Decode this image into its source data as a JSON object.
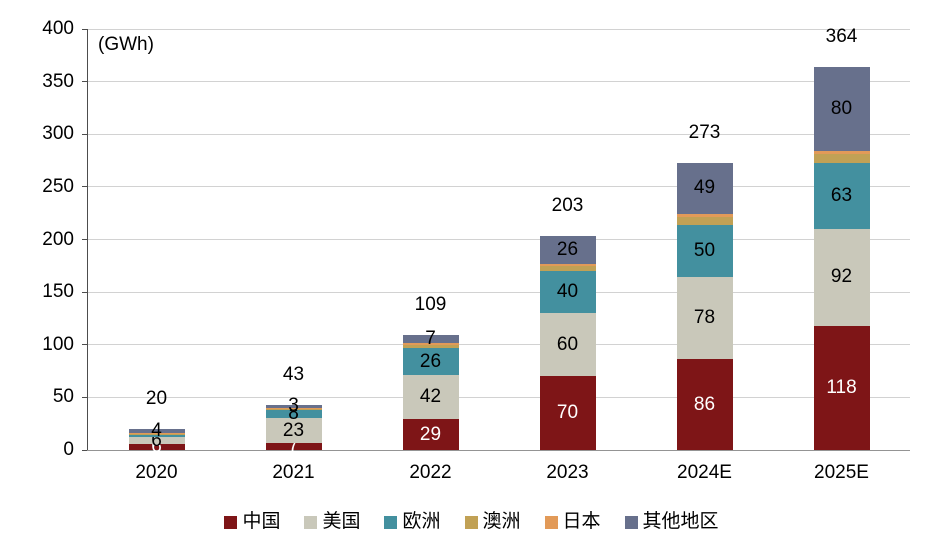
{
  "chart_data": {
    "type": "bar",
    "subtype": "stacked",
    "title": "",
    "unit_label": "(GWh)",
    "xlabel": "",
    "ylabel": "GWh",
    "grid": true,
    "legend_position": "bottom",
    "categories": [
      "2020",
      "2021",
      "2022",
      "2023",
      "2024E",
      "2025E"
    ],
    "totals": [
      20,
      43,
      109,
      203,
      273,
      364
    ],
    "series": [
      {
        "key": "china",
        "name": "中国",
        "color": "#7E1517",
        "label_color": "#ffffff",
        "values": [
          6,
          7,
          29,
          70,
          86,
          118
        ],
        "labels": [
          "6",
          "7",
          "29",
          "70",
          "86",
          "118"
        ]
      },
      {
        "key": "usa",
        "name": "美国",
        "color": "#C9C8BA",
        "label_color": "#000000",
        "values": [
          6,
          23,
          42,
          60,
          78,
          92
        ],
        "labels": [
          "6",
          "23",
          "42",
          "60",
          "78",
          "92"
        ]
      },
      {
        "key": "europe",
        "name": "欧洲",
        "color": "#43909F",
        "label_color": "#000000",
        "values": [
          2,
          8,
          26,
          40,
          50,
          63
        ],
        "labels": [
          null,
          "8",
          "26",
          "40",
          "50",
          "63"
        ]
      },
      {
        "key": "australia",
        "name": "澳洲",
        "color": "#C1A155",
        "label_color": "#000000",
        "values": [
          1,
          1,
          3,
          5,
          7,
          8
        ],
        "labels": [
          null,
          null,
          null,
          null,
          null,
          null
        ]
      },
      {
        "key": "japan",
        "name": "日本",
        "color": "#E29A58",
        "label_color": "#000000",
        "values": [
          1,
          1,
          2,
          2,
          3,
          3
        ],
        "labels": [
          null,
          null,
          null,
          null,
          null,
          null
        ]
      },
      {
        "key": "others",
        "name": "其他地区",
        "color": "#67708C",
        "label_color": "#000000",
        "values": [
          4,
          3,
          7,
          26,
          49,
          80
        ],
        "labels": [
          "4",
          "3",
          "7",
          "26",
          "49",
          "80"
        ]
      }
    ],
    "y_axis": {
      "ticks": [
        0,
        50,
        100,
        150,
        200,
        250,
        300,
        350,
        400
      ],
      "max": 400
    },
    "legend": [
      "中国",
      "美国",
      "欧洲",
      "澳洲",
      "日本",
      "其他地区"
    ]
  }
}
